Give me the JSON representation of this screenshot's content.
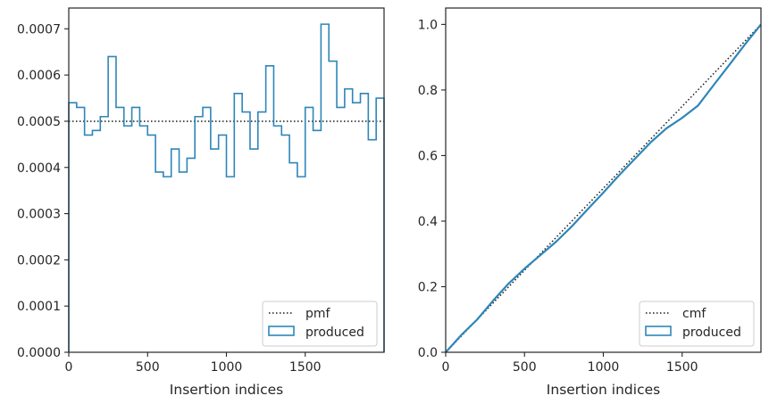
{
  "chart_data": [
    {
      "type": "histogram-step",
      "xlabel": "Insertion indices",
      "ylabel": "",
      "xlim": [
        0,
        2000
      ],
      "ylim": [
        0,
        0.000745
      ],
      "xticks": [
        0,
        500,
        1000,
        1500
      ],
      "xtick_labels": [
        "0",
        "500",
        "1000",
        "1500"
      ],
      "yticks": [
        0,
        0.0001,
        0.0002,
        0.0003,
        0.0004,
        0.0005,
        0.0006,
        0.0007
      ],
      "ytick_labels": [
        "0.0000",
        "0.0001",
        "0.0002",
        "0.0003",
        "0.0004",
        "0.0005",
        "0.0006",
        "0.0007"
      ],
      "bin_width": 50,
      "series": [
        {
          "name": "produced",
          "style": "step",
          "color": "#2e86b9",
          "values": [
            0.00054,
            0.00053,
            0.00047,
            0.00048,
            0.00051,
            0.00064,
            0.00053,
            0.00049,
            0.00053,
            0.00049,
            0.00047,
            0.00039,
            0.00038,
            0.00044,
            0.00039,
            0.00042,
            0.00051,
            0.00053,
            0.00044,
            0.00047,
            0.00038,
            0.00056,
            0.00052,
            0.00044,
            0.00052,
            0.00062,
            0.00049,
            0.00047,
            0.00041,
            0.00038,
            0.00053,
            0.00048,
            0.00071,
            0.00063,
            0.00053,
            0.00057,
            0.00054,
            0.00056,
            0.00046,
            0.00055
          ]
        },
        {
          "name": "pmf",
          "style": "dotted",
          "color": "#1a1a1a",
          "value": 0.0005
        }
      ],
      "legend": {
        "position": "lower-right",
        "entries": [
          "pmf",
          "produced"
        ]
      }
    },
    {
      "type": "line",
      "xlabel": "Insertion indices",
      "ylabel": "",
      "xlim": [
        0,
        2000
      ],
      "ylim": [
        0,
        1.05
      ],
      "xticks": [
        0,
        500,
        1000,
        1500
      ],
      "xtick_labels": [
        "0",
        "500",
        "1000",
        "1500"
      ],
      "yticks": [
        0,
        0.2,
        0.4,
        0.6,
        0.8,
        1.0
      ],
      "ytick_labels": [
        "0.0",
        "0.2",
        "0.4",
        "0.6",
        "0.8",
        "1.0"
      ],
      "series": [
        {
          "name": "cmf",
          "style": "dotted",
          "color": "#1a1a1a",
          "x": [
            0,
            2000
          ],
          "y": [
            0,
            1.0
          ]
        },
        {
          "name": "produced",
          "style": "solid",
          "color": "#2e86b9",
          "x": [
            0,
            100,
            200,
            300,
            400,
            500,
            600,
            700,
            800,
            900,
            1000,
            1100,
            1200,
            1300,
            1400,
            1500,
            1600,
            1700,
            1800,
            1900,
            2000
          ],
          "y": [
            0,
            0.053,
            0.1,
            0.157,
            0.21,
            0.255,
            0.296,
            0.337,
            0.384,
            0.436,
            0.487,
            0.54,
            0.59,
            0.64,
            0.683,
            0.715,
            0.752,
            0.815,
            0.877,
            0.94,
            1.0
          ]
        }
      ],
      "legend": {
        "position": "lower-right",
        "entries": [
          "cmf",
          "produced"
        ]
      }
    }
  ]
}
